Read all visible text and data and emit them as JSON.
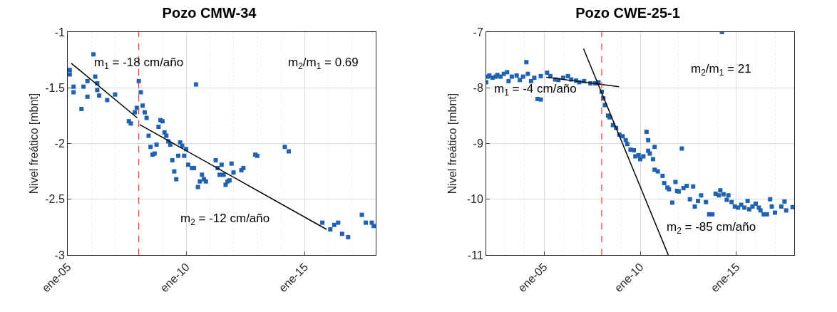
{
  "chart_data": [
    {
      "type": "scatter",
      "title": "Pozo CMW-34",
      "ylabel": "Nivel freático [mbnt]",
      "xlim": [
        "2005-01-01",
        "2018-01-01"
      ],
      "ylim": [
        -3,
        -1
      ],
      "xticks": [
        {
          "value": "2005-01-01",
          "label": "ene-05"
        },
        {
          "value": "2010-01-01",
          "label": "ene-10"
        },
        {
          "value": "2015-01-01",
          "label": "ene-15"
        }
      ],
      "yticks": [
        -3,
        -2.5,
        -2,
        -1.5,
        -1
      ],
      "grid": true,
      "marker": "square",
      "series": [
        {
          "color": "#1f62b0",
          "x": [
            "2005-02",
            "2005-02",
            "2005-04",
            "2005-04",
            "2005-08",
            "2005-09",
            "2005-11",
            "2005-11",
            "2006-02",
            "2006-03",
            "2006-04",
            "2006-04",
            "2006-05",
            "2006-09",
            "2007-01",
            "2007-08",
            "2007-09",
            "2007-11",
            "2007-12",
            "2008-01",
            "2008-02",
            "2008-03",
            "2008-04",
            "2008-05",
            "2008-06",
            "2008-07",
            "2008-08",
            "2008-09",
            "2008-10",
            "2008-11",
            "2008-12",
            "2009-01",
            "2009-02",
            "2009-03",
            "2009-04",
            "2009-05",
            "2009-06",
            "2009-07",
            "2009-08",
            "2009-09",
            "2009-10",
            "2009-11",
            "2009-12",
            "2010-01",
            "2010-02",
            "2010-04",
            "2010-05",
            "2010-06",
            "2010-07",
            "2010-08",
            "2010-09",
            "2010-10",
            "2010-11",
            "2011-04",
            "2011-05",
            "2011-06",
            "2011-07",
            "2011-08",
            "2011-09",
            "2011-10",
            "2011-11",
            "2011-12",
            "2012-01",
            "2012-05",
            "2012-06",
            "2012-12",
            "2013-01",
            "2014-03",
            "2014-05",
            "2015-10",
            "2016-02",
            "2016-04",
            "2016-06",
            "2016-08",
            "2016-11",
            "2017-06",
            "2017-08",
            "2017-11",
            "2017-12"
          ],
          "values": [
            -1.34,
            -1.38,
            -1.49,
            -1.54,
            -1.69,
            -1.49,
            -1.58,
            -1.44,
            -1.2,
            -1.4,
            -1.46,
            -1.52,
            -1.57,
            -1.61,
            -1.56,
            -1.8,
            -1.82,
            -1.72,
            -1.68,
            -1.44,
            -1.54,
            -1.66,
            -1.72,
            -1.77,
            -1.93,
            -2.03,
            -2.1,
            -2.09,
            -2.01,
            -1.85,
            -1.79,
            -1.8,
            -1.9,
            -1.93,
            -1.98,
            -2.01,
            -2.15,
            -2.25,
            -2.32,
            -2.11,
            -1.99,
            -2.02,
            -2.11,
            -2.05,
            -2.19,
            -2.22,
            -2.22,
            -1.47,
            -2.39,
            -2.34,
            -2.28,
            -2.32,
            -2.34,
            -2.15,
            -2.22,
            -2.28,
            -2.19,
            -2.28,
            -2.37,
            -2.34,
            -2.33,
            -2.18,
            -2.26,
            -2.24,
            -2.22,
            -2.1,
            -2.11,
            -2.03,
            -2.07,
            -2.71,
            -2.77,
            -2.73,
            -2.71,
            -2.81,
            -2.84,
            -2.64,
            -2.71,
            -2.71,
            -2.74
          ]
        },
        {
          "type": "line",
          "color": "#000000",
          "marker": "none",
          "x": [
            "2005-02-25",
            "2007-12-10"
          ],
          "values": [
            -1.28,
            -1.77
          ]
        },
        {
          "type": "line",
          "color": "#000000",
          "marker": "none",
          "x": [
            "2008-01-15",
            "2015-12-05"
          ],
          "values": [
            -1.83,
            -2.77
          ]
        }
      ],
      "ref_lines": [
        {
          "axis": "x",
          "value": "2008-01-01",
          "color": "#ff3333",
          "line_style": "dashed"
        }
      ],
      "annotations": [
        "m$_{1}$ = -18 cm/año",
        "m$_{2}$ = -12 cm/año",
        "m$_{2}$/m$_{1}$ = 0.69"
      ]
    },
    {
      "type": "scatter",
      "title": "Pozo CWE-25-1",
      "ylabel": "Nivel freático [mbnt]",
      "xlim": [
        "2002-01-01",
        "2018-01-01"
      ],
      "ylim": [
        -11,
        -7
      ],
      "xticks": [
        {
          "value": "2005-01-01",
          "label": "ene-05"
        },
        {
          "value": "2010-01-01",
          "label": "ene-10"
        },
        {
          "value": "2015-01-01",
          "label": "ene-15"
        }
      ],
      "yticks": [
        -11,
        -10,
        -9,
        -8,
        -7
      ],
      "grid": true,
      "marker": "square",
      "series": [
        {
          "color": "#1f62b0",
          "x": [
            "2002-01",
            "2002-02",
            "2002-03",
            "2002-05",
            "2002-07",
            "2002-08",
            "2002-10",
            "2002-12",
            "2003-02",
            "2003-03",
            "2003-05",
            "2003-08",
            "2003-10",
            "2003-12",
            "2004-02",
            "2004-03",
            "2004-05",
            "2004-07",
            "2004-09",
            "2004-11",
            "2004-11",
            "2005-03",
            "2005-05",
            "2005-08",
            "2005-10",
            "2006-01",
            "2006-04",
            "2006-06",
            "2006-09",
            "2006-11",
            "2007-02",
            "2007-06",
            "2007-09",
            "2007-11",
            "2008-01",
            "2008-02",
            "2008-03",
            "2008-05",
            "2008-06",
            "2008-08",
            "2008-10",
            "2008-12",
            "2009-02",
            "2009-04",
            "2009-05",
            "2009-07",
            "2009-09",
            "2009-10",
            "2009-12",
            "2010-01",
            "2010-03",
            "2010-05",
            "2010-06",
            "2010-06",
            "2010-07",
            "2010-09",
            "2010-10",
            "2010-10",
            "2010-12",
            "2011-03",
            "2011-04",
            "2011-06",
            "2011-07",
            "2011-09",
            "2011-11",
            "2011-12",
            "2012-01",
            "2012-03",
            "2012-04",
            "2012-06",
            "2012-08",
            "2012-10",
            "2012-11",
            "2013-01",
            "2013-03",
            "2013-06",
            "2013-08",
            "2013-10",
            "2013-12",
            "2014-02",
            "2014-03",
            "2014-04",
            "2014-05",
            "2014-07",
            "2014-08",
            "2014-10",
            "2014-12",
            "2015-02",
            "2015-04",
            "2015-06",
            "2015-08",
            "2015-09",
            "2015-11",
            "2016-01",
            "2016-03",
            "2016-04",
            "2016-06",
            "2016-08",
            "2016-10",
            "2016-11",
            "2017-01",
            "2017-05",
            "2017-07",
            "2017-08",
            "2017-12"
          ],
          "values": [
            -7.9,
            -7.8,
            -7.78,
            -7.82,
            -7.8,
            -7.77,
            -7.8,
            -7.75,
            -7.72,
            -7.88,
            -7.8,
            -7.78,
            -7.86,
            -7.8,
            -7.54,
            -7.75,
            -7.88,
            -7.82,
            -8.2,
            -8.21,
            -7.79,
            -7.73,
            -7.79,
            -7.85,
            -7.86,
            -7.82,
            -7.79,
            -7.85,
            -7.87,
            -7.9,
            -7.88,
            -7.92,
            -7.92,
            -7.9,
            -8.07,
            -8.19,
            -8.31,
            -8.5,
            -8.53,
            -8.67,
            -8.72,
            -8.84,
            -8.87,
            -8.94,
            -9.01,
            -9.11,
            -9.12,
            -9.23,
            -9.21,
            -9.28,
            -9.23,
            -8.79,
            -9.13,
            -8.94,
            -9.18,
            -9.28,
            -9.06,
            -9.47,
            -9.5,
            -9.58,
            -9.71,
            -9.79,
            -9.82,
            -10.06,
            -9.69,
            -9.85,
            -9.86,
            -9.09,
            -9.8,
            -9.76,
            -10.0,
            -9.77,
            -10.13,
            -10.03,
            -9.93,
            -10.05,
            -10.27,
            -10.27,
            -9.9,
            -9.93,
            -9.84,
            -7.0,
            -9.91,
            -10.01,
            -9.93,
            -10.05,
            -10.13,
            -10.15,
            -10.1,
            -10.15,
            -10.03,
            -10.18,
            -10.13,
            -10.08,
            -10.15,
            -10.2,
            -10.27,
            -10.27,
            -10.0,
            -10.13,
            -10.24,
            -10.13,
            -10.04,
            -10.2,
            -10.14
          ]
        },
        {
          "type": "line",
          "color": "#000000",
          "marker": "none",
          "x": [
            "2005-02-10",
            "2008-11-25"
          ],
          "values": [
            -7.81,
            -7.98
          ]
        },
        {
          "type": "line",
          "color": "#000000",
          "marker": "none",
          "x": [
            "2007-01-22",
            "2011-06-18"
          ],
          "values": [
            -7.3,
            -11.0
          ]
        }
      ],
      "ref_lines": [
        {
          "axis": "x",
          "value": "2008-01-01",
          "color": "#ff3333",
          "line_style": "dashed"
        }
      ],
      "annotations": [
        "m$_{1}$ = -4 cm/año",
        "m$_{2}$ = -85 cm/año",
        "m$_{2}$/m$_{1}$ = 21"
      ]
    }
  ]
}
